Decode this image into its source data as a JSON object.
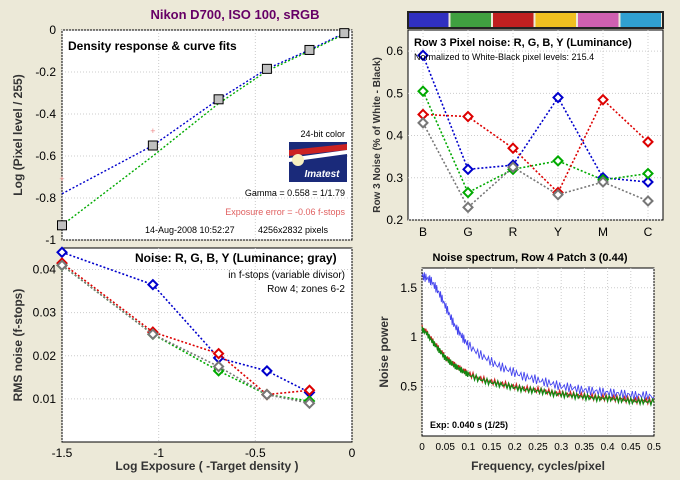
{
  "page_title": "Nikon D700, ISO 100, sRGB",
  "colors": {
    "background": "#ece9d8",
    "plot_bg": "#ffffff",
    "blue": "#0000cc",
    "green": "#00aa00",
    "red": "#dd0000",
    "gray": "#777777",
    "yellow_text": "#ff0000"
  },
  "chart_data": [
    {
      "id": "density",
      "type": "scatter",
      "title": "Density response & curve fits",
      "xlim": [
        -1.5,
        0
      ],
      "ylim": [
        -1,
        0
      ],
      "ylabel": "Log (Pixel level / 255)",
      "xticks": [
        "-1.5",
        "-1",
        "-0.5",
        "0"
      ],
      "yticks": [
        "0",
        "-0.2",
        "-0.4",
        "-0.6",
        "-0.8",
        "-1"
      ],
      "points": [
        {
          "x": -1.5,
          "y": -0.93
        },
        {
          "x": -1.03,
          "y": -0.55
        },
        {
          "x": -0.69,
          "y": -0.33
        },
        {
          "x": -0.44,
          "y": -0.185
        },
        {
          "x": -0.22,
          "y": -0.095
        },
        {
          "x": -0.04,
          "y": -0.015
        }
      ],
      "red_points": [
        {
          "x": -1.5,
          "y": -0.71
        },
        {
          "x": -1.03,
          "y": -0.48
        }
      ],
      "fit_blue": [
        {
          "x": -1.5,
          "y": -0.78
        },
        {
          "x": -1.03,
          "y": -0.55
        },
        {
          "x": -0.69,
          "y": -0.33
        },
        {
          "x": -0.44,
          "y": -0.185
        },
        {
          "x": -0.22,
          "y": -0.095
        },
        {
          "x": -0.04,
          "y": -0.015
        }
      ],
      "fit_green": [
        {
          "x": -1.5,
          "y": -0.93
        },
        {
          "x": -1.03,
          "y": -0.6
        },
        {
          "x": -0.69,
          "y": -0.35
        },
        {
          "x": -0.44,
          "y": -0.195
        },
        {
          "x": -0.22,
          "y": -0.1
        },
        {
          "x": -0.04,
          "y": -0.02
        }
      ],
      "annotations": {
        "badge_top": "24-bit color",
        "badge_logo": "Imatest",
        "gamma": "Gamma = 0.558 = 1/1.79",
        "exposure_error": "Exposure error = -0.06 f-stops",
        "datetime": "14-Aug-2008 10:52:27",
        "pixels": "4256x2832 pixels"
      }
    },
    {
      "id": "row3noise",
      "type": "line",
      "title": "Row 3 Pixel noise: R, G, B, Y (Luminance)",
      "subtitle": "Normalized to White-Black pixel levels: 215.4",
      "ylabel": "Row 3 Noise (% of White - Black)",
      "categories": [
        "B",
        "G",
        "R",
        "Y",
        "M",
        "C"
      ],
      "ylim": [
        0.2,
        0.65
      ],
      "yticks": [
        "0.6",
        "0.5",
        "0.4",
        "0.3",
        "0.2"
      ],
      "color_bar": [
        "#3030c0",
        "#40a040",
        "#c02020",
        "#f0c020",
        "#d060b0",
        "#30a0d0"
      ],
      "series": [
        {
          "name": "B",
          "color": "#0000cc",
          "values": [
            0.59,
            0.32,
            0.33,
            0.49,
            0.3,
            0.29
          ]
        },
        {
          "name": "G",
          "color": "#00aa00",
          "values": [
            0.505,
            0.265,
            0.32,
            0.34,
            0.295,
            0.31
          ]
        },
        {
          "name": "R",
          "color": "#dd0000",
          "values": [
            0.45,
            0.445,
            0.37,
            0.265,
            0.485,
            0.385
          ]
        },
        {
          "name": "Y",
          "color": "#777777",
          "values": [
            0.43,
            0.23,
            0.325,
            0.26,
            0.29,
            0.245
          ]
        }
      ]
    },
    {
      "id": "noise_fstops",
      "type": "line",
      "title": "Noise: R, G, B, Y (Luminance; gray)",
      "notes": [
        "in f-stops (variable divisor)",
        "Row 4; zones 6-2"
      ],
      "xlabel": "Log Exposure ( -Target density )",
      "ylabel": "RMS noise (f-stops)",
      "xlim": [
        -1.5,
        0
      ],
      "ylim": [
        0,
        0.045
      ],
      "xticks": [
        "-1.5",
        "-1",
        "-0.5",
        "0"
      ],
      "yticks": [
        "0.04",
        "0.03",
        "0.02",
        "0.01"
      ],
      "x": [
        -1.5,
        -1.03,
        -0.69,
        -0.44,
        -0.22
      ],
      "series": [
        {
          "name": "B",
          "color": "#0000cc",
          "values": [
            0.044,
            0.0365,
            0.0195,
            0.0165,
            0.0115
          ]
        },
        {
          "name": "G",
          "color": "#00aa00",
          "values": [
            0.041,
            0.025,
            0.0165,
            0.011,
            0.0095
          ]
        },
        {
          "name": "R",
          "color": "#dd0000",
          "values": [
            0.0415,
            0.0255,
            0.0205,
            0.011,
            0.012
          ]
        },
        {
          "name": "Y",
          "color": "#777777",
          "values": [
            0.041,
            0.025,
            0.0175,
            0.011,
            0.009
          ]
        }
      ]
    },
    {
      "id": "spectrum",
      "type": "line",
      "title": "Noise spectrum, Row 4 Patch 3 (0.44)",
      "xlabel": "Frequency, cycles/pixel",
      "ylabel": "Noise power",
      "xlim": [
        0,
        0.5
      ],
      "ylim": [
        0,
        1.7
      ],
      "xticks": [
        "0",
        "0.05",
        "0.1",
        "0.15",
        "0.2",
        "0.25",
        "0.3",
        "0.35",
        "0.4",
        "0.45",
        "0.5"
      ],
      "yticks": [
        "1.5",
        "1",
        "0.5"
      ],
      "annotation": "Exp:  0.040 s  (1/25)",
      "series": [
        {
          "name": "blue",
          "color": "#4444ee",
          "x": [
            0,
            0.01,
            0.02,
            0.03,
            0.04,
            0.05,
            0.06,
            0.07,
            0.08,
            0.09,
            0.1,
            0.12,
            0.14,
            0.16,
            0.18,
            0.2,
            0.22,
            0.24,
            0.26,
            0.28,
            0.3,
            0.32,
            0.34,
            0.36,
            0.38,
            0.4,
            0.42,
            0.44,
            0.46,
            0.48,
            0.5
          ],
          "values": [
            1.62,
            1.6,
            1.57,
            1.5,
            1.42,
            1.32,
            1.22,
            1.12,
            1.05,
            0.98,
            0.92,
            0.84,
            0.78,
            0.72,
            0.68,
            0.64,
            0.6,
            0.58,
            0.55,
            0.53,
            0.5,
            0.49,
            0.47,
            0.46,
            0.45,
            0.44,
            0.43,
            0.42,
            0.41,
            0.41,
            0.4
          ]
        },
        {
          "name": "red",
          "color": "#cc2222",
          "x": [
            0,
            0.01,
            0.02,
            0.03,
            0.04,
            0.05,
            0.06,
            0.07,
            0.08,
            0.09,
            0.1,
            0.12,
            0.14,
            0.16,
            0.18,
            0.2,
            0.22,
            0.24,
            0.26,
            0.28,
            0.3,
            0.32,
            0.34,
            0.36,
            0.38,
            0.4,
            0.42,
            0.44,
            0.46,
            0.48,
            0.5
          ],
          "values": [
            1.1,
            1.05,
            0.98,
            0.92,
            0.86,
            0.8,
            0.76,
            0.72,
            0.69,
            0.66,
            0.63,
            0.59,
            0.56,
            0.54,
            0.52,
            0.5,
            0.48,
            0.47,
            0.46,
            0.44,
            0.43,
            0.42,
            0.41,
            0.4,
            0.39,
            0.39,
            0.38,
            0.37,
            0.36,
            0.36,
            0.35
          ]
        },
        {
          "name": "green",
          "color": "#118811",
          "x": [
            0,
            0.01,
            0.02,
            0.03,
            0.04,
            0.05,
            0.06,
            0.07,
            0.08,
            0.09,
            0.1,
            0.12,
            0.14,
            0.16,
            0.18,
            0.2,
            0.22,
            0.24,
            0.26,
            0.28,
            0.3,
            0.32,
            0.34,
            0.36,
            0.38,
            0.4,
            0.42,
            0.44,
            0.46,
            0.48,
            0.5
          ],
          "values": [
            1.08,
            1.04,
            0.97,
            0.91,
            0.85,
            0.79,
            0.75,
            0.71,
            0.68,
            0.65,
            0.62,
            0.58,
            0.55,
            0.53,
            0.51,
            0.49,
            0.47,
            0.46,
            0.45,
            0.43,
            0.42,
            0.41,
            0.4,
            0.39,
            0.38,
            0.38,
            0.37,
            0.36,
            0.35,
            0.35,
            0.34
          ]
        }
      ]
    }
  ]
}
